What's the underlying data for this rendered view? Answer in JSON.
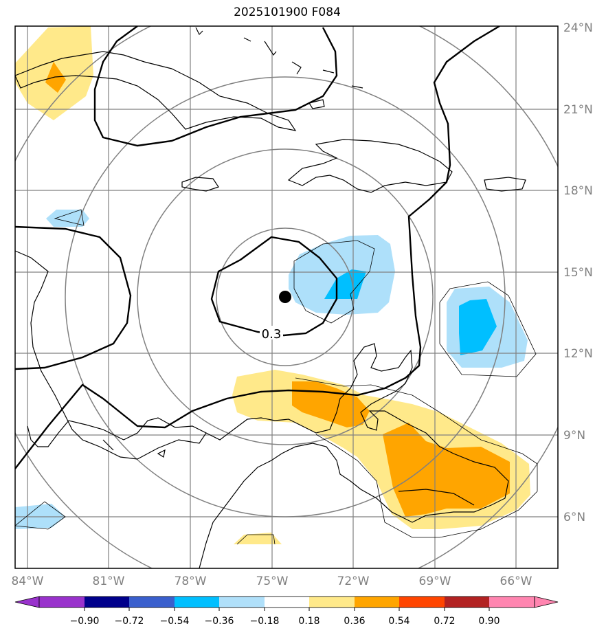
{
  "title": "2025101900 F084",
  "map": {
    "lat_labels": [
      "24°N",
      "21°N",
      "18°N",
      "15°N",
      "12°N",
      "9°N",
      "6°N"
    ],
    "lon_labels": [
      "84°W",
      "81°W",
      "78°W",
      "75°W",
      "72°W",
      "69°W",
      "66°W"
    ],
    "contour_label": "0.3",
    "storm_center": {
      "lat": 14.1,
      "lon": -74.4
    }
  },
  "colorbar": {
    "ticks": [
      "−0.90",
      "−0.72",
      "−0.54",
      "−0.36",
      "−0.18",
      "0.18",
      "0.36",
      "0.54",
      "0.72",
      "0.90"
    ],
    "colors": {
      "under": "#9932cc",
      "bins": [
        "#9932cc",
        "#00008b",
        "#3a5fcd",
        "#00bfff",
        "#b0e0fa",
        "#ffffff",
        "#ffe98a",
        "#ffa500",
        "#ff4500",
        "#b22222",
        "#ff85b0"
      ],
      "over": "#ff85b0"
    }
  },
  "colors": {
    "light_blue": "#aee0fa",
    "mid_blue": "#00bfff",
    "light_yellow": "#ffe98a",
    "orange": "#ffa500",
    "grid": "#808080",
    "coast": "#000000"
  }
}
